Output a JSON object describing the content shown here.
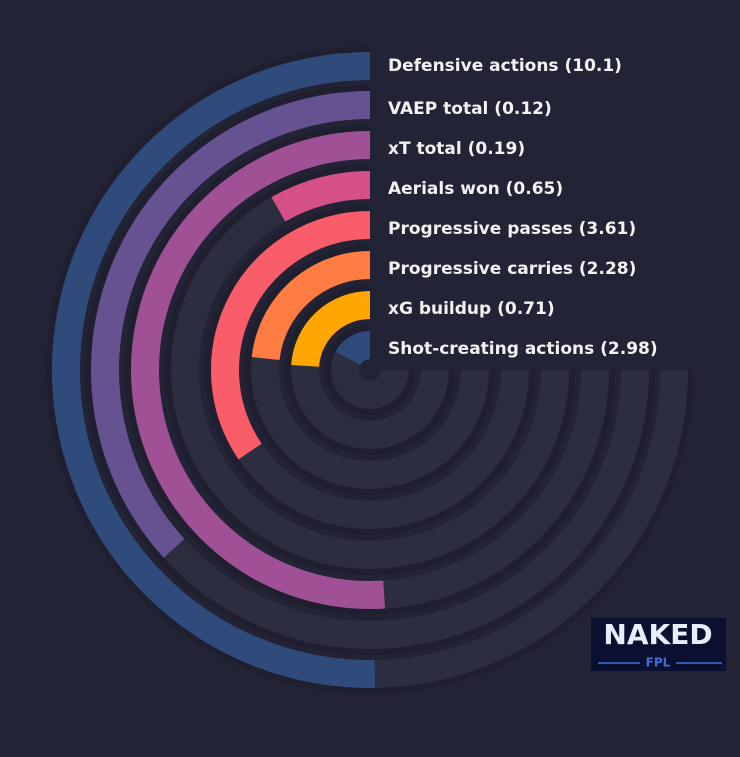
{
  "chart_data": {
    "type": "radial_bar",
    "categories": [
      "Defensive actions (10.1)",
      "VAEP total (0.12)",
      "xT total (0.19)",
      "Aerials won (0.65)",
      "Progressive passes (3.61)",
      "Progressive carries (2.28)",
      "xG buildup (0.71)",
      "Shot-creating actions (2.98)"
    ],
    "values": [
      67,
      49,
      68,
      11,
      46,
      31,
      32,
      23
    ],
    "colors": [
      "#2f4b7c",
      "#665191",
      "#a05195",
      "#d45087",
      "#f95d6a",
      "#ff7c43",
      "#ffa600",
      "#2f4b7c"
    ],
    "ylim": [
      0,
      100
    ]
  },
  "logo": {
    "line1": "NAKED",
    "line2": "FPL"
  }
}
